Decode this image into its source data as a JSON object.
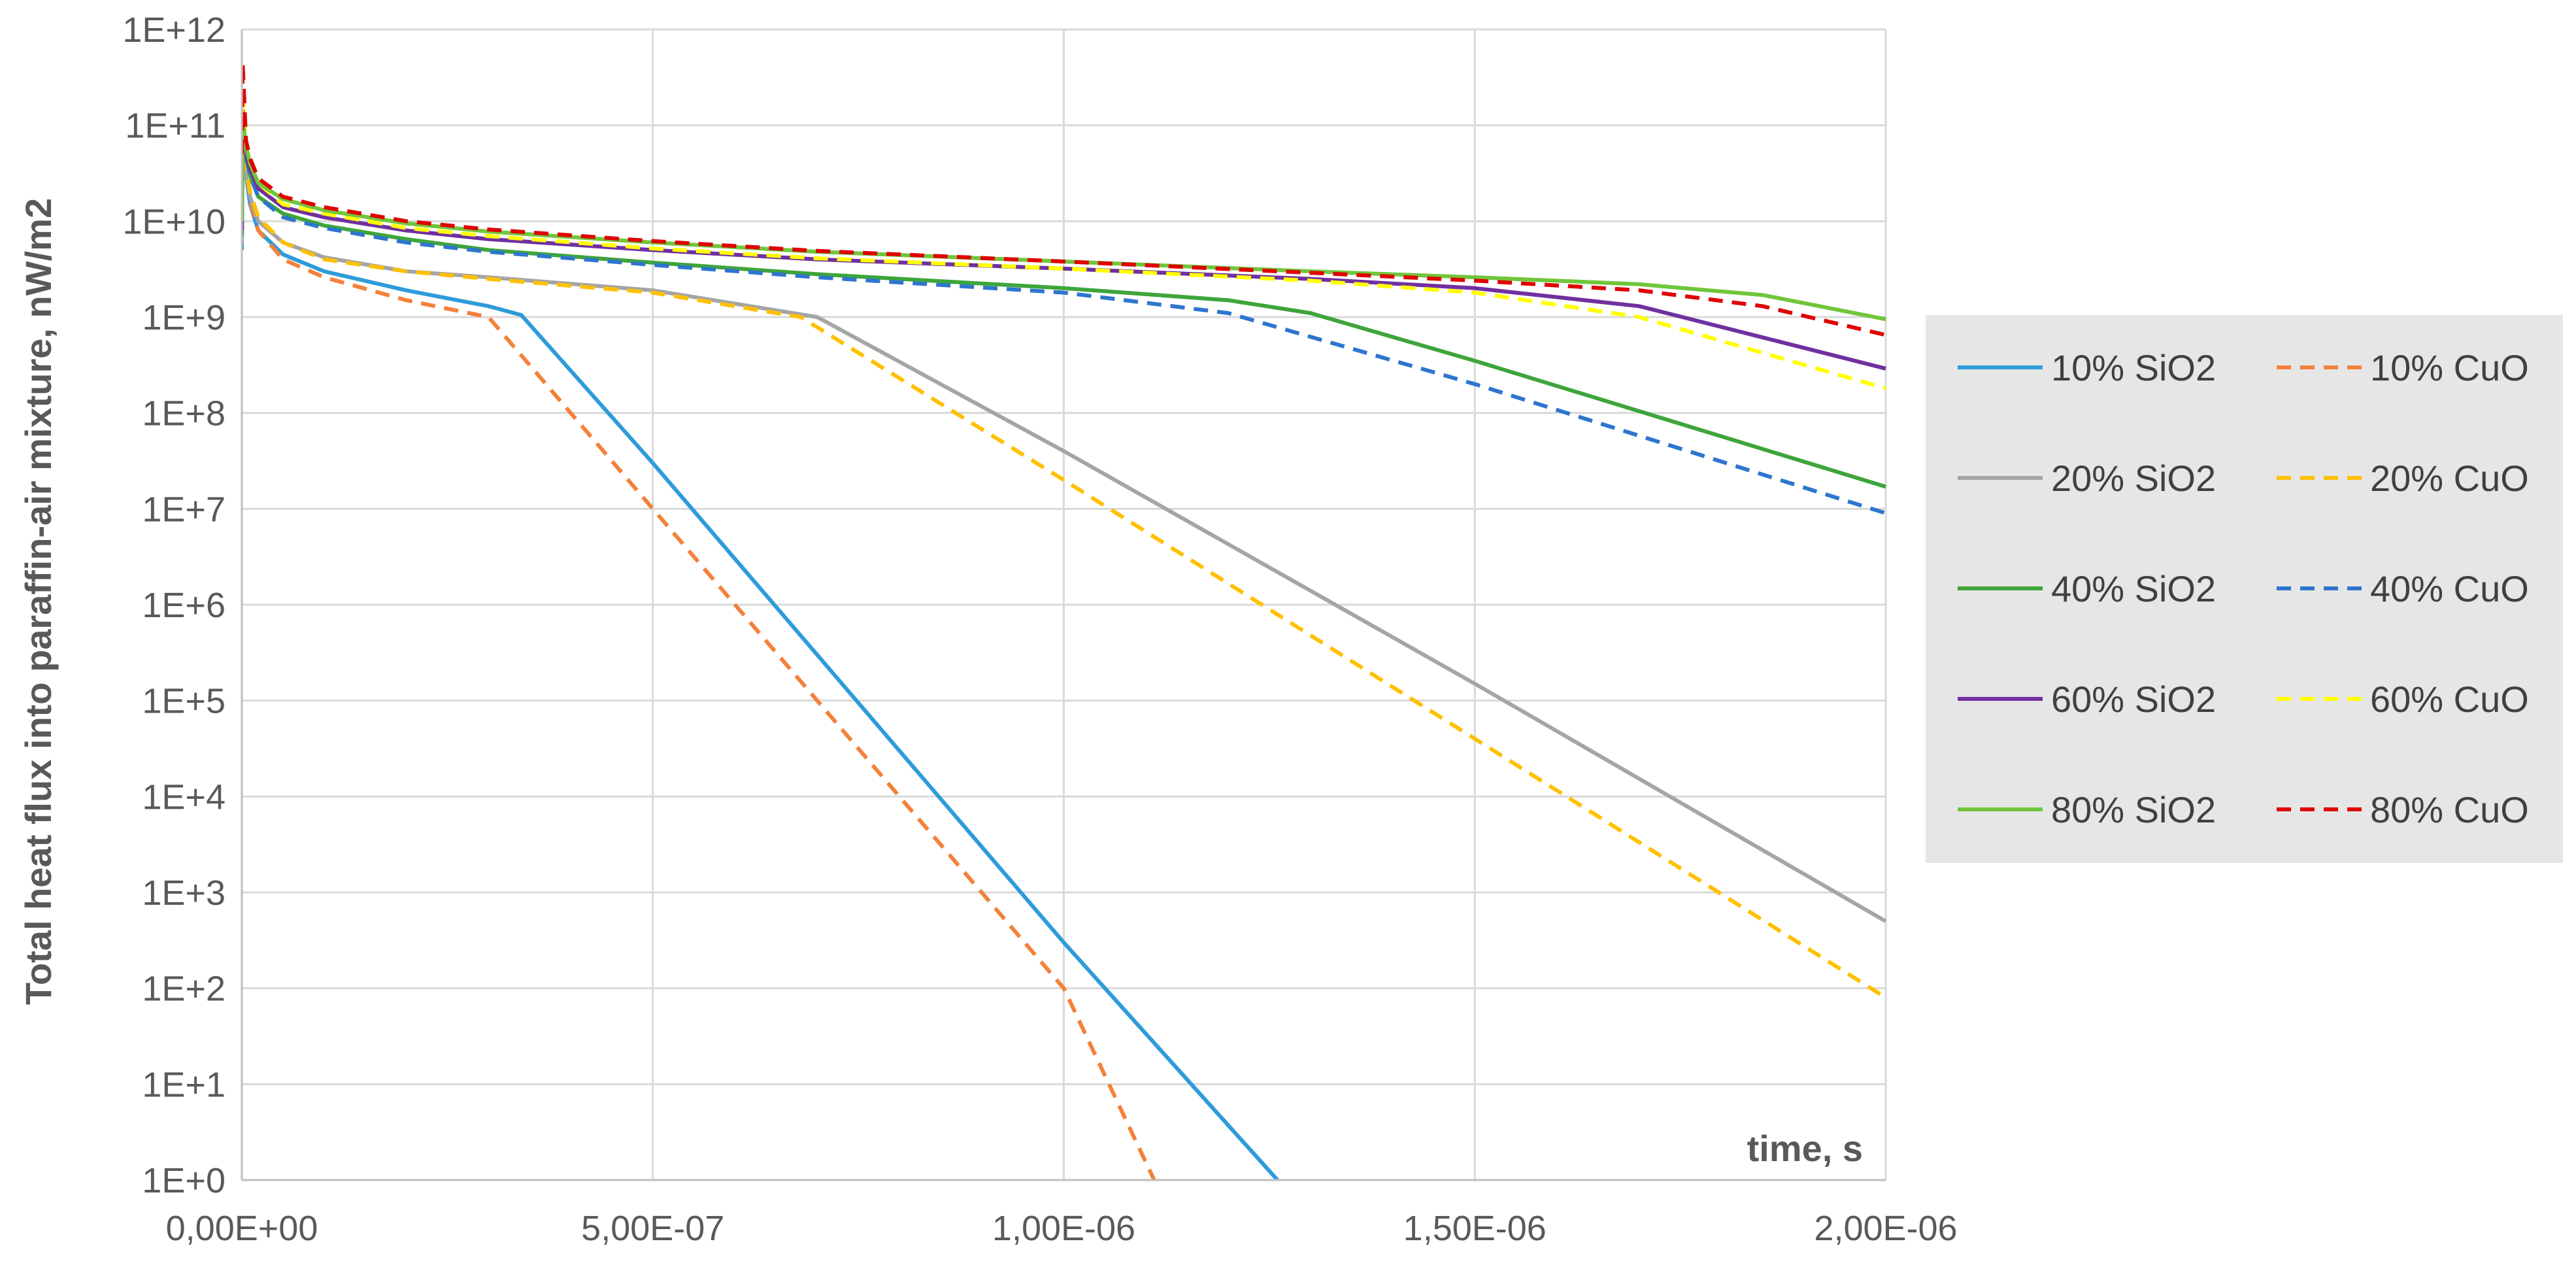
{
  "chart_data": {
    "type": "line",
    "xlabel": "time, s",
    "ylabel": "Total heat flux  into paraffin-air mixture, nW/m2",
    "xlim": [
      0,
      2e-06
    ],
    "ylim": [
      1,
      1000000000000.0
    ],
    "yscale": "log",
    "grid": true,
    "legend_position": "right",
    "x_tick_labels": [
      "0,00E+00",
      "5,00E-07",
      "1,00E-06",
      "1,50E-06",
      "2,00E-06"
    ],
    "y_tick_labels": [
      "1E+0",
      "1E+1",
      "1E+2",
      "1E+3",
      "1E+4",
      "1E+5",
      "1E+6",
      "1E+7",
      "1E+8",
      "1E+9",
      "1E+10",
      "1E+11",
      "1E+12"
    ],
    "series": [
      {
        "name": "10% SiO2",
        "color": "#2E9BDA",
        "dash": false,
        "x": [
          0,
          1e-09,
          5e-09,
          1e-08,
          2e-08,
          5e-08,
          1e-07,
          2e-07,
          3e-07,
          3.4e-07,
          5e-07,
          7e-07,
          1e-06,
          1.26e-06
        ],
        "y": [
          5000000000.0,
          80000000000.0,
          30000000000.0,
          15000000000.0,
          8000000000.0,
          4500000000.0,
          3000000000.0,
          1900000000.0,
          1300000000.0,
          1050000000.0,
          30000000.0,
          300000.0,
          300.0,
          1
        ]
      },
      {
        "name": "10% CuO",
        "color": "#F4813A",
        "dash": true,
        "x": [
          0,
          1e-09,
          5e-09,
          1e-08,
          2e-08,
          5e-08,
          1e-07,
          2e-07,
          3e-07,
          5e-07,
          7e-07,
          1e-06,
          1.11e-06
        ],
        "y": [
          50000000000.0,
          200000000000.0,
          40000000000.0,
          16000000000.0,
          8000000000.0,
          4000000000.0,
          2600000000.0,
          1500000000.0,
          1000000000.0,
          10000000.0,
          100000.0,
          100.0,
          1
        ]
      },
      {
        "name": "20% SiO2",
        "color": "#A5A5A5",
        "dash": false,
        "x": [
          0,
          1e-09,
          5e-09,
          1e-08,
          2e-08,
          5e-08,
          1e-07,
          2e-07,
          3e-07,
          5e-07,
          7e-07,
          1e-06,
          1.5e-06,
          2e-06
        ],
        "y": [
          6000000000.0,
          90000000000.0,
          30000000000.0,
          18000000000.0,
          10000000000.0,
          6000000000.0,
          4200000000.0,
          3000000000.0,
          2600000000.0,
          1900000000.0,
          1000000000.0,
          40000000.0,
          150000.0,
          500.0
        ]
      },
      {
        "name": "20% CuO",
        "color": "#FFC000",
        "dash": true,
        "x": [
          0,
          1e-09,
          5e-09,
          1e-08,
          2e-08,
          5e-08,
          1e-07,
          2e-07,
          3e-07,
          5e-07,
          6.8e-07,
          1e-06,
          1.5e-06,
          2e-06
        ],
        "y": [
          50000000000.0,
          200000000000.0,
          40000000000.0,
          20000000000.0,
          11000000000.0,
          6000000000.0,
          4000000000.0,
          3000000000.0,
          2500000000.0,
          1800000000.0,
          1000000000.0,
          20000000.0,
          40000.0,
          80.0
        ]
      },
      {
        "name": "40% SiO2",
        "color": "#3EA53A",
        "dash": false,
        "x": [
          0,
          1e-09,
          5e-09,
          1e-08,
          2e-08,
          5e-08,
          1e-07,
          2e-07,
          3e-07,
          5e-07,
          7e-07,
          1e-06,
          1.2e-06,
          1.3e-06,
          1.5e-06,
          2e-06
        ],
        "y": [
          7000000000.0,
          100000000000.0,
          45000000000.0,
          30000000000.0,
          18000000000.0,
          12000000000.0,
          9000000000.0,
          6500000000.0,
          5000000000.0,
          3700000000.0,
          2800000000.0,
          2000000000.0,
          1500000000.0,
          1100000000.0,
          350000000.0,
          17000000.0
        ]
      },
      {
        "name": "40% CuO",
        "color": "#2E75CE",
        "dash": true,
        "x": [
          0,
          1e-09,
          5e-09,
          1e-08,
          2e-08,
          5e-08,
          1e-07,
          2e-07,
          3e-07,
          5e-07,
          7e-07,
          1e-06,
          1.2e-06,
          1.5e-06,
          2e-06
        ],
        "y": [
          30000000000.0,
          150000000000.0,
          50000000000.0,
          30000000000.0,
          18000000000.0,
          11000000000.0,
          8500000000.0,
          6000000000.0,
          4800000000.0,
          3500000000.0,
          2600000000.0,
          1800000000.0,
          1100000000.0,
          200000000.0,
          9000000.0
        ]
      },
      {
        "name": "60% SiO2",
        "color": "#7030A0",
        "dash": false,
        "x": [
          0,
          1e-09,
          5e-09,
          1e-08,
          2e-08,
          5e-08,
          1e-07,
          2e-07,
          3e-07,
          5e-07,
          7e-07,
          1e-06,
          1.3e-06,
          1.5e-06,
          1.7e-06,
          2e-06
        ],
        "y": [
          8000000000.0,
          110000000000.0,
          50000000000.0,
          35000000000.0,
          22000000000.0,
          14000000000.0,
          11000000000.0,
          8000000000.0,
          6500000000.0,
          5000000000.0,
          4000000000.0,
          3200000000.0,
          2500000000.0,
          2000000000.0,
          1300000000.0,
          290000000.0
        ]
      },
      {
        "name": "60% CuO",
        "color": "#FFFF00",
        "dash": true,
        "x": [
          0,
          1e-09,
          5e-09,
          1e-08,
          2e-08,
          5e-08,
          1e-07,
          2e-07,
          3e-07,
          5e-07,
          7e-07,
          1e-06,
          1.3e-06,
          1.5e-06,
          1.7e-06,
          2e-06
        ],
        "y": [
          30000000000.0,
          250000000000.0,
          60000000000.0,
          40000000000.0,
          25000000000.0,
          15000000000.0,
          12000000000.0,
          8500000000.0,
          7000000000.0,
          5200000000.0,
          4100000000.0,
          3200000000.0,
          2400000000.0,
          1800000000.0,
          1000000000.0,
          180000000.0
        ]
      },
      {
        "name": "80% SiO2",
        "color": "#70C63A",
        "dash": false,
        "x": [
          0,
          1e-09,
          5e-09,
          1e-08,
          2e-08,
          5e-08,
          1e-07,
          2e-07,
          3e-07,
          5e-07,
          7e-07,
          1e-06,
          1.3e-06,
          1.5e-06,
          1.7e-06,
          1.85e-06,
          2e-06
        ],
        "y": [
          10000000000.0,
          120000000000.0,
          60000000000.0,
          40000000000.0,
          25000000000.0,
          17000000000.0,
          13000000000.0,
          9500000000.0,
          7800000000.0,
          6000000000.0,
          4800000000.0,
          3800000000.0,
          3000000000.0,
          2600000000.0,
          2200000000.0,
          1700000000.0,
          950000000.0
        ]
      },
      {
        "name": "80% CuO",
        "color": "#E00000",
        "dash": true,
        "x": [
          0,
          1e-09,
          5e-09,
          1e-08,
          2e-08,
          5e-08,
          1e-07,
          2e-07,
          3e-07,
          5e-07,
          7e-07,
          1e-06,
          1.3e-06,
          1.5e-06,
          1.7e-06,
          1.85e-06,
          2e-06
        ],
        "y": [
          50000000000.0,
          450000000000.0,
          70000000000.0,
          45000000000.0,
          28000000000.0,
          18000000000.0,
          14000000000.0,
          10000000000.0,
          8200000000.0,
          6200000000.0,
          4900000000.0,
          3800000000.0,
          2900000000.0,
          2400000000.0,
          1900000000.0,
          1300000000.0,
          650000000.0
        ]
      }
    ]
  }
}
